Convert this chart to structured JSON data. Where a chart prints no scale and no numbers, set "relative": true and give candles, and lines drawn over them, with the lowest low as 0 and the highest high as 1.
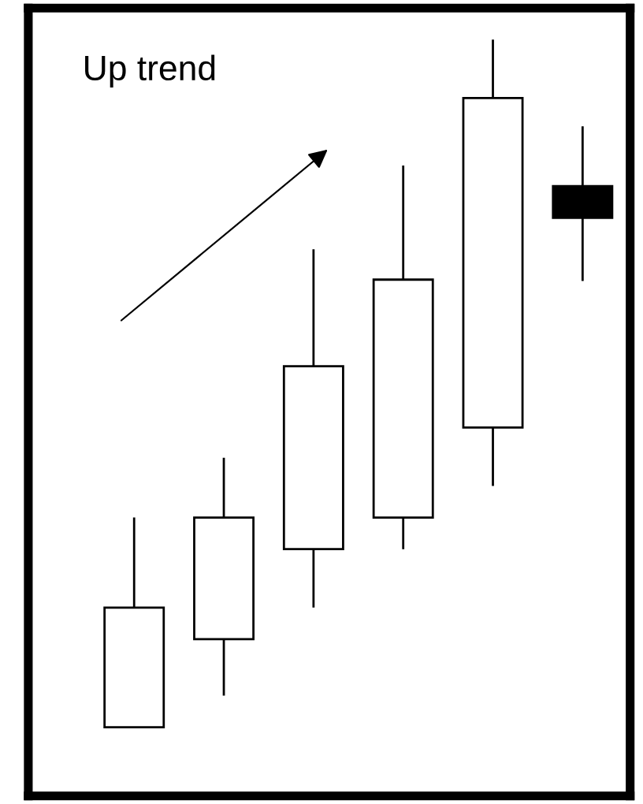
{
  "chart_data": {
    "type": "candlestick",
    "relative": true,
    "categories": [
      null,
      null,
      null,
      null,
      null,
      null
    ],
    "ohlc": [
      [
        0,
        0.305,
        0,
        0.174
      ],
      [
        0.128,
        0.392,
        0.046,
        0.305
      ],
      [
        0.259,
        0.695,
        0.174,
        0.525
      ],
      [
        0.305,
        0.817,
        0.259,
        0.651
      ],
      [
        0.436,
        1,
        0.351,
        0.915
      ],
      [
        0.787,
        0.874,
        0.649,
        0.741
      ]
    ],
    "colors": [
      "#ffffff",
      "#ffffff",
      "#ffffff",
      "#ffffff",
      "#ffffff",
      "#000000"
    ],
    "annotations": [
      "Up trend"
    ]
  }
}
